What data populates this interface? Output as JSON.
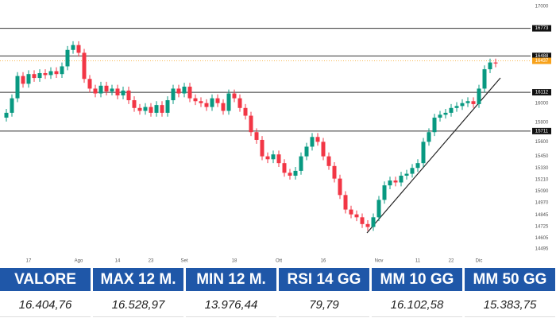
{
  "chart_data": {
    "type": "candlestick",
    "categories": [
      null,
      null,
      null,
      null,
      "17",
      null,
      null,
      null,
      null,
      null,
      null,
      null,
      null,
      "Ago",
      null,
      null,
      null,
      null,
      null,
      null,
      "14",
      null,
      null,
      null,
      null,
      null,
      "23",
      null,
      null,
      null,
      null,
      null,
      "Set",
      null,
      null,
      null,
      null,
      null,
      null,
      null,
      null,
      "18",
      null,
      null,
      null,
      null,
      null,
      null,
      null,
      "Ott",
      null,
      null,
      null,
      null,
      null,
      null,
      null,
      "16",
      null,
      null,
      null,
      null,
      null,
      null,
      null,
      null,
      null,
      "Nov",
      null,
      null,
      null,
      null,
      null,
      null,
      "11",
      null,
      null,
      null,
      null,
      null,
      "22",
      null,
      null,
      null,
      null,
      "Dic",
      null,
      null,
      null
    ],
    "open": [
      15850,
      15900,
      16050,
      16280,
      16200,
      16300,
      16260,
      16310,
      16290,
      16330,
      16300,
      16380,
      16550,
      16600,
      16520,
      16250,
      16150,
      16100,
      16180,
      16120,
      16150,
      16080,
      16130,
      16030,
      15950,
      15920,
      15960,
      15900,
      15980,
      15900,
      16030,
      16150,
      16100,
      16170,
      16050,
      16020,
      16000,
      15960,
      16050,
      16000,
      15920,
      16100,
      16050,
      15950,
      15870,
      15700,
      15620,
      15450,
      15420,
      15470,
      15380,
      15280,
      15250,
      15300,
      15450,
      15550,
      15650,
      15600,
      15450,
      15350,
      15220,
      15050,
      14900,
      14850,
      14820,
      14750,
      14720,
      14820,
      15000,
      15150,
      15200,
      15180,
      15250,
      15270,
      15330,
      15380,
      15600,
      15700,
      15850,
      15880,
      15900,
      15950,
      15970,
      16000,
      16020,
      15990,
      16150,
      16350,
      16420
    ],
    "high": [
      15940,
      16090,
      16320,
      16320,
      16340,
      16340,
      16350,
      16350,
      16370,
      16370,
      16420,
      16590,
      16640,
      16640,
      16560,
      16290,
      16190,
      16220,
      16220,
      16190,
      16190,
      16170,
      16170,
      16070,
      15990,
      16000,
      16000,
      16020,
      16020,
      16070,
      16190,
      16190,
      16210,
      16210,
      16090,
      16060,
      16040,
      16090,
      16090,
      16040,
      16140,
      16140,
      16090,
      15990,
      15910,
      15740,
      15660,
      15490,
      15510,
      15510,
      15420,
      15320,
      15340,
      15490,
      15590,
      15690,
      15690,
      15640,
      15490,
      15390,
      15260,
      15090,
      14940,
      14890,
      14860,
      14790,
      14860,
      15040,
      15190,
      15240,
      15240,
      15290,
      15310,
      15370,
      15420,
      15640,
      15740,
      15890,
      15920,
      15940,
      15990,
      16010,
      16040,
      16060,
      16060,
      16190,
      16390,
      16460,
      16460
    ],
    "low": [
      15810,
      15860,
      16010,
      16160,
      16160,
      16220,
      16220,
      16250,
      16250,
      16260,
      16260,
      16340,
      16510,
      16480,
      16210,
      16110,
      16060,
      16060,
      16080,
      16080,
      16040,
      16040,
      15990,
      15910,
      15880,
      15880,
      15860,
      15860,
      15860,
      15860,
      15990,
      16060,
      16060,
      16010,
      15980,
      15960,
      15920,
      15920,
      15960,
      15880,
      15880,
      16010,
      15910,
      15830,
      15660,
      15580,
      15410,
      15380,
      15380,
      15340,
      15240,
      15210,
      15210,
      15260,
      15410,
      15510,
      15560,
      15410,
      15310,
      15180,
      15010,
      14860,
      14810,
      14780,
      14710,
      14680,
      14680,
      14780,
      14960,
      15110,
      15140,
      15140,
      15210,
      15230,
      15290,
      15340,
      15560,
      15660,
      15810,
      15840,
      15860,
      15910,
      15930,
      15960,
      15950,
      15950,
      16110,
      16310,
      16370
    ],
    "close": [
      15900,
      16050,
      16280,
      16200,
      16300,
      16260,
      16310,
      16290,
      16330,
      16300,
      16380,
      16550,
      16600,
      16520,
      16250,
      16150,
      16100,
      16180,
      16120,
      16150,
      16080,
      16130,
      16030,
      15950,
      15920,
      15960,
      15900,
      15980,
      15900,
      16030,
      16150,
      16100,
      16170,
      16050,
      16020,
      16000,
      15960,
      16050,
      16000,
      15920,
      16100,
      16050,
      15950,
      15870,
      15700,
      15620,
      15450,
      15420,
      15470,
      15380,
      15280,
      15250,
      15300,
      15450,
      15550,
      15650,
      15600,
      15450,
      15350,
      15220,
      15050,
      14900,
      14850,
      14820,
      14750,
      14720,
      14820,
      15000,
      15150,
      15200,
      15180,
      15250,
      15270,
      15330,
      15380,
      15600,
      15700,
      15850,
      15880,
      15900,
      15950,
      15970,
      16000,
      16020,
      15990,
      16150,
      16350,
      16420,
      16410
    ],
    "up_color": "#089981",
    "down_color": "#f23645",
    "ylim": [
      14420,
      17000
    ],
    "yticks": [
      17000,
      16000,
      15800,
      15600,
      15450,
      15330,
      15210,
      15090,
      14970,
      14845,
      14725,
      14605,
      14495
    ],
    "levels": [
      16773,
      16488,
      16112,
      15711
    ],
    "last_price": 16437,
    "last_price_color": "#f7a21b"
  },
  "table": {
    "headers": [
      "VALORE",
      "MAX 12 M.",
      "MIN 12 M.",
      "RSI 14 GG",
      "MM 10 GG",
      "MM 50 GG"
    ],
    "values": [
      "16.404,76",
      "16.528,97",
      "13.976,44",
      "79,79",
      "16.102,58",
      "15.383,75"
    ]
  }
}
